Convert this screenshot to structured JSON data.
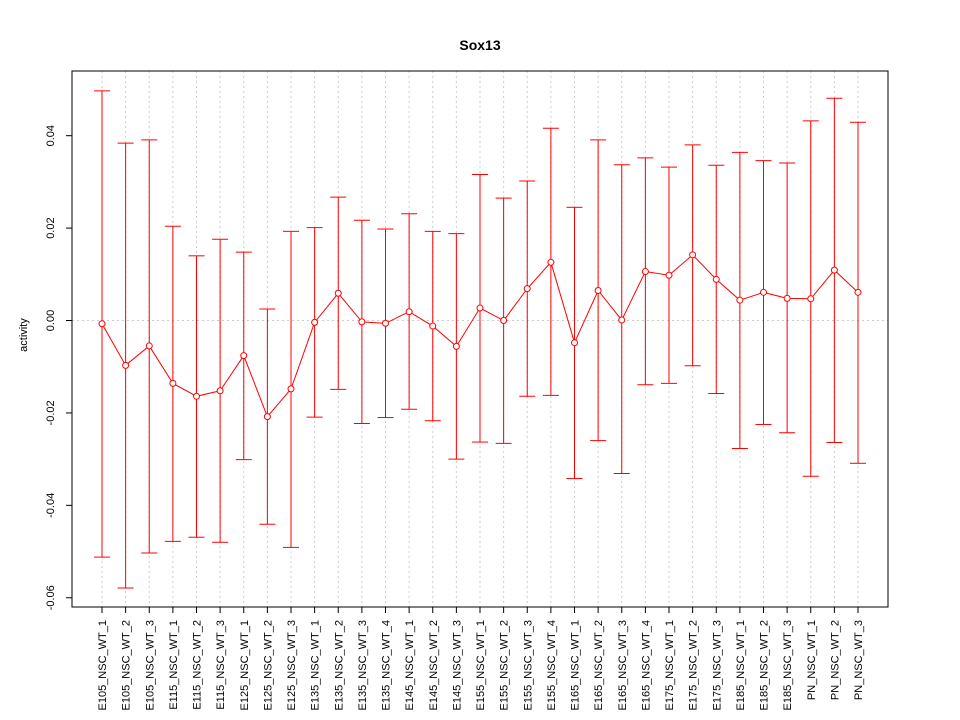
{
  "chart_data": {
    "type": "line",
    "title": "Sox13",
    "xlabel": "",
    "ylabel": "activity",
    "ylim": [
      -0.062,
      0.054
    ],
    "yticks": [
      -0.06,
      -0.04,
      -0.02,
      0.0,
      0.02,
      0.04
    ],
    "ytick_labels": [
      "-0.06",
      "-0.04",
      "-0.02",
      "0.00",
      "0.02",
      "0.04"
    ],
    "grid": true,
    "reference_line_y": 0.0,
    "color": "#ff0000",
    "categories": [
      "E105_NSC_WT_1",
      "E105_NSC_WT_2",
      "E105_NSC_WT_3",
      "E115_NSC_WT_1",
      "E115_NSC_WT_2",
      "E115_NSC_WT_3",
      "E125_NSC_WT_1",
      "E125_NSC_WT_2",
      "E125_NSC_WT_3",
      "E135_NSC_WT_1",
      "E135_NSC_WT_2",
      "E135_NSC_WT_3",
      "E135_NSC_WT_4",
      "E145_NSC_WT_1",
      "E145_NSC_WT_2",
      "E145_NSC_WT_3",
      "E155_NSC_WT_1",
      "E155_NSC_WT_2",
      "E155_NSC_WT_3",
      "E155_NSC_WT_4",
      "E165_NSC_WT_1",
      "E165_NSC_WT_2",
      "E165_NSC_WT_3",
      "E165_NSC_WT_4",
      "E175_NSC_WT_1",
      "E175_NSC_WT_2",
      "E175_NSC_WT_3",
      "E185_NSC_WT_1",
      "E185_NSC_WT_2",
      "E185_NSC_WT_3",
      "PN_NSC_WT_1",
      "PN_NSC_WT_2",
      "PN_NSC_WT_3"
    ],
    "values": [
      -0.0007,
      -0.0097,
      -0.0055,
      -0.0136,
      -0.0164,
      -0.0152,
      -0.0076,
      -0.0208,
      -0.0148,
      -0.0004,
      0.0059,
      -0.0003,
      -0.0006,
      0.0019,
      -0.0012,
      -0.0056,
      0.0027,
      0.0,
      0.0069,
      0.0126,
      -0.0048,
      0.0065,
      0.0001,
      0.0106,
      0.0098,
      0.0142,
      0.0089,
      0.0044,
      0.0061,
      0.0048,
      0.0047,
      0.0109,
      0.0061
    ],
    "upper": [
      0.0497,
      0.0384,
      0.0391,
      0.0204,
      0.014,
      0.0176,
      0.0148,
      0.0025,
      0.0193,
      0.0201,
      0.0267,
      0.0217,
      0.0198,
      0.0231,
      0.0193,
      0.0188,
      0.0316,
      0.0265,
      0.0302,
      0.0416,
      0.0245,
      0.0391,
      0.0337,
      0.0352,
      0.0332,
      0.038,
      0.0336,
      0.0364,
      0.0346,
      0.0341,
      0.0432,
      0.0481,
      0.0429
    ],
    "lower": [
      -0.0512,
      -0.0579,
      -0.0503,
      -0.0478,
      -0.0469,
      -0.048,
      -0.0301,
      -0.0441,
      -0.0491,
      -0.0209,
      -0.0149,
      -0.0223,
      -0.021,
      -0.0192,
      -0.0217,
      -0.03,
      -0.0263,
      -0.0266,
      -0.0164,
      -0.0162,
      -0.0342,
      -0.026,
      -0.0331,
      -0.0139,
      -0.0136,
      -0.0098,
      -0.0158,
      -0.0277,
      -0.0225,
      -0.0243,
      -0.0337,
      -0.0264,
      -0.0309
    ]
  }
}
